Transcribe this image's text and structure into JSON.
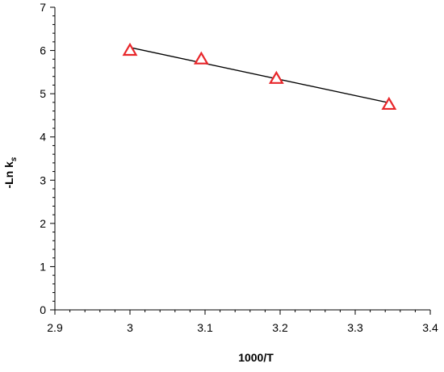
{
  "chart_data": {
    "type": "scatter",
    "x": [
      3.0,
      3.095,
      3.195,
      3.345
    ],
    "y": [
      6.0,
      5.8,
      5.35,
      4.75
    ],
    "xlabel": "1000/T",
    "ylabel_main": "-Ln k",
    "ylabel_sub": "s",
    "xlim": [
      2.9,
      3.4
    ],
    "ylim": [
      0,
      7
    ],
    "xticks": [
      "2.9",
      "3",
      "3.1",
      "3.2",
      "3.3",
      "3.4"
    ],
    "yticks": [
      "0",
      "1",
      "2",
      "3",
      "4",
      "5",
      "6",
      "7"
    ],
    "trendline": {
      "x": [
        3.0,
        3.345
      ],
      "y": [
        6.07,
        4.79
      ]
    },
    "marker": "triangle-open",
    "marker_color": "#e8262a",
    "line_color": "#000000",
    "grid": false,
    "legend": "none"
  }
}
